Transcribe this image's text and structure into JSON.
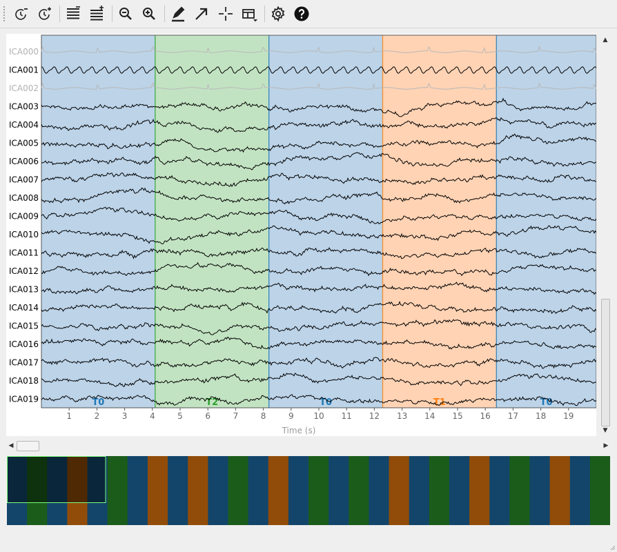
{
  "toolbar": {
    "icons": [
      "decrease-duration-icon",
      "increase-duration-icon",
      "fewer-channels-icon",
      "more-channels-icon",
      "zoom-out-icon",
      "zoom-in-icon",
      "annotation-mode-icon",
      "add-annotation-icon",
      "crosshair-icon",
      "projectors-icon",
      "settings-icon",
      "help-icon"
    ]
  },
  "colors": {
    "T0": "#1f77b4",
    "T1": "#ff7f0e",
    "T2": "#2ca02c",
    "T0_fill": "#bcd3e8",
    "T1_fill": "#ffd3b4",
    "T2_fill": "#c2e3c2",
    "T0_overview": "#13456a",
    "T1_overview": "#914c09",
    "T2_overview": "#1b5c1b",
    "trace": "#000000",
    "trace_excluded": "#b8b8b8",
    "label_excluded": "#b0b0b0"
  },
  "channels": [
    {
      "name": "ICA000",
      "excluded": true
    },
    {
      "name": "ICA001",
      "excluded": false
    },
    {
      "name": "ICA002",
      "excluded": true
    },
    {
      "name": "ICA003",
      "excluded": false
    },
    {
      "name": "ICA004",
      "excluded": false
    },
    {
      "name": "ICA005",
      "excluded": false
    },
    {
      "name": "ICA006",
      "excluded": false
    },
    {
      "name": "ICA007",
      "excluded": false
    },
    {
      "name": "ICA008",
      "excluded": false
    },
    {
      "name": "ICA009",
      "excluded": false
    },
    {
      "name": "ICA010",
      "excluded": false
    },
    {
      "name": "ICA011",
      "excluded": false
    },
    {
      "name": "ICA012",
      "excluded": false
    },
    {
      "name": "ICA013",
      "excluded": false
    },
    {
      "name": "ICA014",
      "excluded": false
    },
    {
      "name": "ICA015",
      "excluded": false
    },
    {
      "name": "ICA016",
      "excluded": false
    },
    {
      "name": "ICA017",
      "excluded": false
    },
    {
      "name": "ICA018",
      "excluded": false
    },
    {
      "name": "ICA019",
      "excluded": false
    }
  ],
  "annotations": [
    {
      "label": "T0",
      "onset": 0.0,
      "end": 4.1
    },
    {
      "label": "T2",
      "onset": 4.1,
      "end": 8.2
    },
    {
      "label": "T0",
      "onset": 8.2,
      "end": 12.3
    },
    {
      "label": "T1",
      "onset": 12.3,
      "end": 16.4
    },
    {
      "label": "T0",
      "onset": 16.4,
      "end": 20.0
    }
  ],
  "time_axis": {
    "label": "Time (s)",
    "ticks": [
      "1",
      "2",
      "3",
      "4",
      "5",
      "6",
      "7",
      "8",
      "9",
      "10",
      "11",
      "12",
      "13",
      "14",
      "15",
      "16",
      "17",
      "18",
      "19"
    ],
    "range": [
      0,
      20
    ]
  },
  "overview": {
    "sequence": [
      "T0",
      "T2",
      "T0",
      "T1",
      "T0",
      "T2",
      "T0",
      "T1",
      "T0",
      "T1",
      "T0",
      "T2",
      "T0",
      "T1",
      "T0",
      "T2",
      "T0",
      "T2",
      "T0",
      "T1",
      "T0",
      "T2",
      "T0",
      "T1",
      "T0",
      "T2",
      "T0",
      "T1",
      "T0",
      "T2"
    ],
    "view_fraction": 0.163
  }
}
